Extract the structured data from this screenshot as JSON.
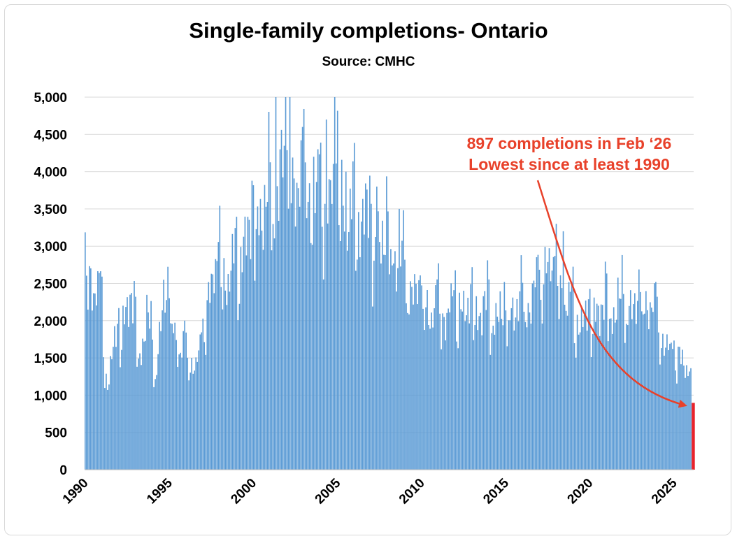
{
  "colors": {
    "bar": "#5b9bd5",
    "bar_edge": "#4a86c0",
    "highlight": "#e8222a",
    "annotation": "#e8412a",
    "grid": "#d9d9d9"
  },
  "chart_data": {
    "type": "bar",
    "title": "Single-family completions- Ontario",
    "subtitle": "Source: CMHC",
    "xlabel": "",
    "ylabel": "",
    "ylim": [
      0,
      5000
    ],
    "grid": true,
    "y_ticks": [
      0,
      500,
      1000,
      1500,
      2000,
      2500,
      3000,
      3500,
      4000,
      4500,
      5000
    ],
    "y_tick_labels": [
      "0",
      "500",
      "1,000",
      "1,500",
      "2,000",
      "2,500",
      "3,000",
      "3,500",
      "4,000",
      "4,500",
      "5,000"
    ],
    "x_tick_labels": [
      "1990",
      "1995",
      "2000",
      "2005",
      "2010",
      "2015",
      "2020",
      "2025"
    ],
    "x_tick_years": [
      1990,
      1995,
      2000,
      2005,
      2010,
      2015,
      2020,
      2025
    ],
    "start": "1990-01",
    "end": "2026-02",
    "frequency": "monthly",
    "series": [
      {
        "name": "Single-family completions",
        "anchors": [
          [
            1990.0,
            2700
          ],
          [
            1990.5,
            2400
          ],
          [
            1990.9,
            2300
          ],
          [
            1991.3,
            1100
          ],
          [
            1991.7,
            1600
          ],
          [
            1992.2,
            1900
          ],
          [
            1992.7,
            2300
          ],
          [
            1993.2,
            1500
          ],
          [
            1993.7,
            2000
          ],
          [
            1994.2,
            1300
          ],
          [
            1994.7,
            2300
          ],
          [
            1995.1,
            2100
          ],
          [
            1995.6,
            1500
          ],
          [
            1996.0,
            1600
          ],
          [
            1996.6,
            1300
          ],
          [
            1997.0,
            1800
          ],
          [
            1997.6,
            2600
          ],
          [
            1998.0,
            2700
          ],
          [
            1998.5,
            2500
          ],
          [
            1999.0,
            2700
          ],
          [
            1999.5,
            3000
          ],
          [
            2000.0,
            3200
          ],
          [
            2000.5,
            3400
          ],
          [
            2001.0,
            3500
          ],
          [
            2001.5,
            3600
          ],
          [
            2002.0,
            4200
          ],
          [
            2002.5,
            3500
          ],
          [
            2003.0,
            4200
          ],
          [
            2003.5,
            3300
          ],
          [
            2004.0,
            3700
          ],
          [
            2004.5,
            3500
          ],
          [
            2005.0,
            3900
          ],
          [
            2005.5,
            3300
          ],
          [
            2006.0,
            3300
          ],
          [
            2006.5,
            3400
          ],
          [
            2007.0,
            3100
          ],
          [
            2007.5,
            3000
          ],
          [
            2008.0,
            3000
          ],
          [
            2008.5,
            2800
          ],
          [
            2009.0,
            2600
          ],
          [
            2009.5,
            2300
          ],
          [
            2010.0,
            2300
          ],
          [
            2010.5,
            2000
          ],
          [
            2011.0,
            2200
          ],
          [
            2011.5,
            2000
          ],
          [
            2012.0,
            2200
          ],
          [
            2012.5,
            2100
          ],
          [
            2013.0,
            2100
          ],
          [
            2013.5,
            2100
          ],
          [
            2014.0,
            2100
          ],
          [
            2014.5,
            2000
          ],
          [
            2015.0,
            2000
          ],
          [
            2015.5,
            2100
          ],
          [
            2016.0,
            2200
          ],
          [
            2016.5,
            2200
          ],
          [
            2017.0,
            2500
          ],
          [
            2017.5,
            2700
          ],
          [
            2018.0,
            2600
          ],
          [
            2018.5,
            2200
          ],
          [
            2019.0,
            2100
          ],
          [
            2019.5,
            1900
          ],
          [
            2020.0,
            2000
          ],
          [
            2020.5,
            2100
          ],
          [
            2021.0,
            2100
          ],
          [
            2021.5,
            2100
          ],
          [
            2022.0,
            2200
          ],
          [
            2022.5,
            2100
          ],
          [
            2023.0,
            2200
          ],
          [
            2023.5,
            2200
          ],
          [
            2024.0,
            2000
          ],
          [
            2024.5,
            1600
          ],
          [
            2025.0,
            1500
          ],
          [
            2025.5,
            1500
          ],
          [
            2025.9,
            1150
          ],
          [
            2026.1,
            897
          ]
        ],
        "peaks": [
          [
            2001.3,
            5000
          ],
          [
            2001.6,
            4300
          ],
          [
            2002.2,
            5000
          ],
          [
            2002.9,
            4600
          ],
          [
            2003.6,
            4200
          ],
          [
            2004.3,
            4700
          ],
          [
            2004.8,
            5000
          ],
          [
            2005.5,
            4000
          ],
          [
            2007.3,
            3800
          ],
          [
            2008.7,
            3500
          ],
          [
            2018.0,
            3300
          ],
          [
            2018.4,
            3200
          ]
        ]
      }
    ],
    "highlight": {
      "label": "Feb 2026",
      "value": 897
    },
    "annotation": {
      "lines": [
        "897 completions in Feb ‘26",
        "Lowest since at least 1990"
      ],
      "target": "Feb 2026"
    }
  }
}
